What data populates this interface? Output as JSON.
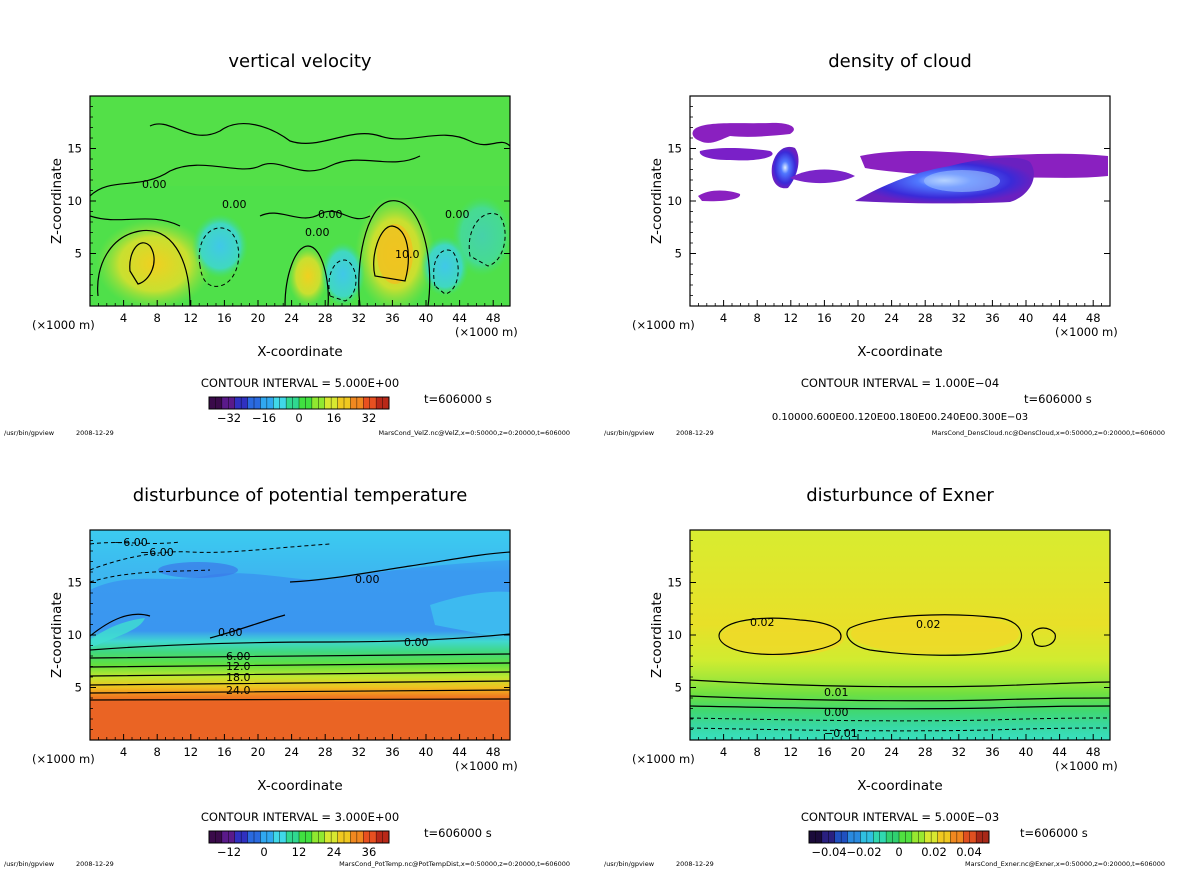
{
  "footer_program": "/usr/bin/gpview",
  "footer_date": "2008-12-29",
  "chart_data": [
    {
      "id": "w",
      "type": "heatmap",
      "title": "vertical velocity",
      "xlabel": "X-coordinate",
      "ylabel": "Z-coordinate",
      "xunit_left": "(×1000 m)",
      "xunit_right": "(×1000 m)",
      "xlim": [
        0,
        50
      ],
      "ylim": [
        0,
        20
      ],
      "xticks": [
        "4",
        "8",
        "12",
        "16",
        "20",
        "24",
        "28",
        "32",
        "36",
        "40",
        "44",
        "48"
      ],
      "yticks": [
        "5",
        "10",
        "15"
      ],
      "contour_interval": "CONTOUR INTERVAL = 5.000E+00",
      "time": "t=606000 s",
      "colorbar_ticks": [
        "−32",
        "−16",
        "0",
        "16",
        "32"
      ],
      "colorbar_palette": [
        "#3a0a4a",
        "#5a1a8a",
        "#3030c0",
        "#2a6ae0",
        "#30a8f0",
        "#40d8e8",
        "#30d890",
        "#40e040",
        "#90e830",
        "#d8e830",
        "#f0c820",
        "#f08820",
        "#e85020",
        "#b82818"
      ],
      "background": "#4fe04a",
      "contour_labels": [
        "0.00",
        "0.00",
        "0.00",
        "0.00",
        "0.00",
        "10.0"
      ],
      "file_info": "MarsCond_VelZ.nc@VelZ,x=0:50000,z=0:20000,t=606000"
    },
    {
      "id": "cloud",
      "type": "heatmap",
      "title": "density of cloud",
      "xlabel": "X-coordinate",
      "ylabel": "Z-coordinate",
      "xunit_left": "(×1000 m)",
      "xunit_right": "(×1000 m)",
      "xlim": [
        0,
        50
      ],
      "ylim": [
        0,
        20
      ],
      "xticks": [
        "4",
        "8",
        "12",
        "16",
        "20",
        "24",
        "28",
        "32",
        "36",
        "40",
        "44",
        "48"
      ],
      "yticks": [
        "5",
        "10",
        "15"
      ],
      "contour_interval": "CONTOUR INTERVAL = 1.000E−04",
      "time": "t=606000 s",
      "colorbar_ticks": [
        "0.10000.600E00.120E00.180E00.240E00.300E−03"
      ],
      "colorbar_palette": [],
      "background": "#ffffff",
      "contour_labels": [],
      "file_info": "MarsCond_DensCloud.nc@DensCloud,x=0:50000,z=0:20000,t=606000"
    },
    {
      "id": "theta",
      "type": "heatmap",
      "title": "disturbunce of potential temperature",
      "xlabel": "X-coordinate",
      "ylabel": "Z-coordinate",
      "xunit_left": "(×1000 m)",
      "xunit_right": "(×1000 m)",
      "xlim": [
        0,
        50
      ],
      "ylim": [
        0,
        20
      ],
      "xticks": [
        "4",
        "8",
        "12",
        "16",
        "20",
        "24",
        "28",
        "32",
        "36",
        "40",
        "44",
        "48"
      ],
      "yticks": [
        "5",
        "10",
        "15"
      ],
      "contour_interval": "CONTOUR INTERVAL = 3.000E+00",
      "time": "t=606000 s",
      "colorbar_ticks": [
        "−12",
        "0",
        "12",
        "24",
        "36"
      ],
      "colorbar_palette": [
        "#3a0a4a",
        "#5a1a8a",
        "#3030c0",
        "#2a6ae0",
        "#30a8f0",
        "#40d8e8",
        "#30d890",
        "#40e040",
        "#90e830",
        "#d8e830",
        "#f0c820",
        "#f08820",
        "#e85020",
        "#b82818"
      ],
      "background": "#3fa0f0",
      "contour_labels": [
        "−6.00",
        "−6.00",
        "0.00",
        "0.00",
        "0.00",
        "6.00",
        "12.0",
        "18.0",
        "24.0"
      ],
      "file_info": "MarsCond_PotTemp.nc@PotTempDist,x=0:50000,z=0:20000,t=606000"
    },
    {
      "id": "exner",
      "type": "heatmap",
      "title": "disturbunce of Exner",
      "xlabel": "X-coordinate",
      "ylabel": "Z-coordinate",
      "xunit_left": "(×1000 m)",
      "xunit_right": "(×1000 m)",
      "xlim": [
        0,
        50
      ],
      "ylim": [
        0,
        20
      ],
      "xticks": [
        "4",
        "8",
        "12",
        "16",
        "20",
        "24",
        "28",
        "32",
        "36",
        "40",
        "44",
        "48"
      ],
      "yticks": [
        "5",
        "10",
        "15"
      ],
      "contour_interval": "CONTOUR INTERVAL = 5.000E−03",
      "time": "t=606000 s",
      "colorbar_ticks": [
        "−0.04",
        "−0.02",
        "0",
        "0.02",
        "0.04"
      ],
      "colorbar_palette": [
        "#1a0a3a",
        "#2a2080",
        "#2050c0",
        "#2a8ae0",
        "#30c0e0",
        "#30d8b0",
        "#30d070",
        "#50e040",
        "#98e830",
        "#d8e830",
        "#f0c820",
        "#f08820",
        "#e05020",
        "#a82818"
      ],
      "background": "#d8ec2c",
      "contour_labels": [
        "0.02",
        "0.02",
        "0.01",
        "0.00",
        "−0.01"
      ],
      "file_info": "MarsCond_Exner.nc@Exner,x=0:50000,z=0:20000,t=606000"
    }
  ]
}
